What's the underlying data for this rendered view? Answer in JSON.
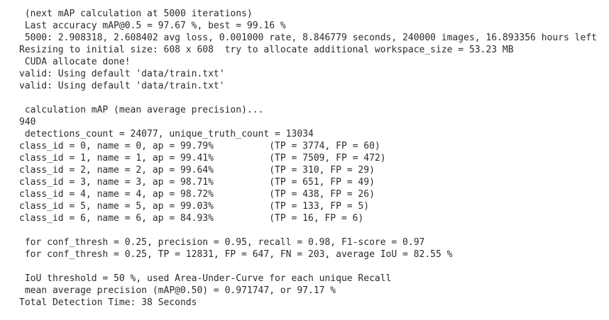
{
  "console": {
    "blocks": [
      {
        "lines": [
          " (next mAP calculation at 5000 iterations)",
          " Last accuracy mAP@0.5 = 97.67 %, best = 99.16 % ",
          " 5000: 2.908318, 2.608402 avg loss, 0.001000 rate, 8.846779 seconds, 240000 images, 16.893356 hours left",
          "Resizing to initial size: 608 x 608  try to allocate additional workspace_size = 53.23 MB ",
          " CUDA allocate done!",
          "valid: Using default 'data/train.txt'",
          "valid: Using default 'data/train.txt'"
        ]
      },
      {
        "lines": [
          " calculation mAP (mean average precision)...",
          "940",
          " detections_count = 24077, unique_truth_count = 13034  ",
          "class_id = 0, name = 0, ap = 99.79%     \t (TP = 3774, FP = 60) ",
          "class_id = 1, name = 1, ap = 99.41%     \t (TP = 7509, FP = 472) ",
          "class_id = 2, name = 2, ap = 99.64%     \t (TP = 310, FP = 29) ",
          "class_id = 3, name = 3, ap = 98.71%     \t (TP = 651, FP = 49) ",
          "class_id = 4, name = 4, ap = 98.72%     \t (TP = 438, FP = 26) ",
          "class_id = 5, name = 5, ap = 99.03%     \t (TP = 133, FP = 5) ",
          "class_id = 6, name = 6, ap = 84.93%     \t (TP = 16, FP = 6) "
        ]
      },
      {
        "lines": [
          " for conf_thresh = 0.25, precision = 0.95, recall = 0.98, F1-score = 0.97 ",
          " for conf_thresh = 0.25, TP = 12831, FP = 647, FN = 203, average IoU = 82.55 % "
        ]
      },
      {
        "lines": [
          " IoU threshold = 50 %, used Area-Under-Curve for each unique Recall ",
          " mean average precision (mAP@0.50) = 0.971747, or 97.17 % ",
          "Total Detection Time: 38 Seconds"
        ]
      }
    ]
  }
}
